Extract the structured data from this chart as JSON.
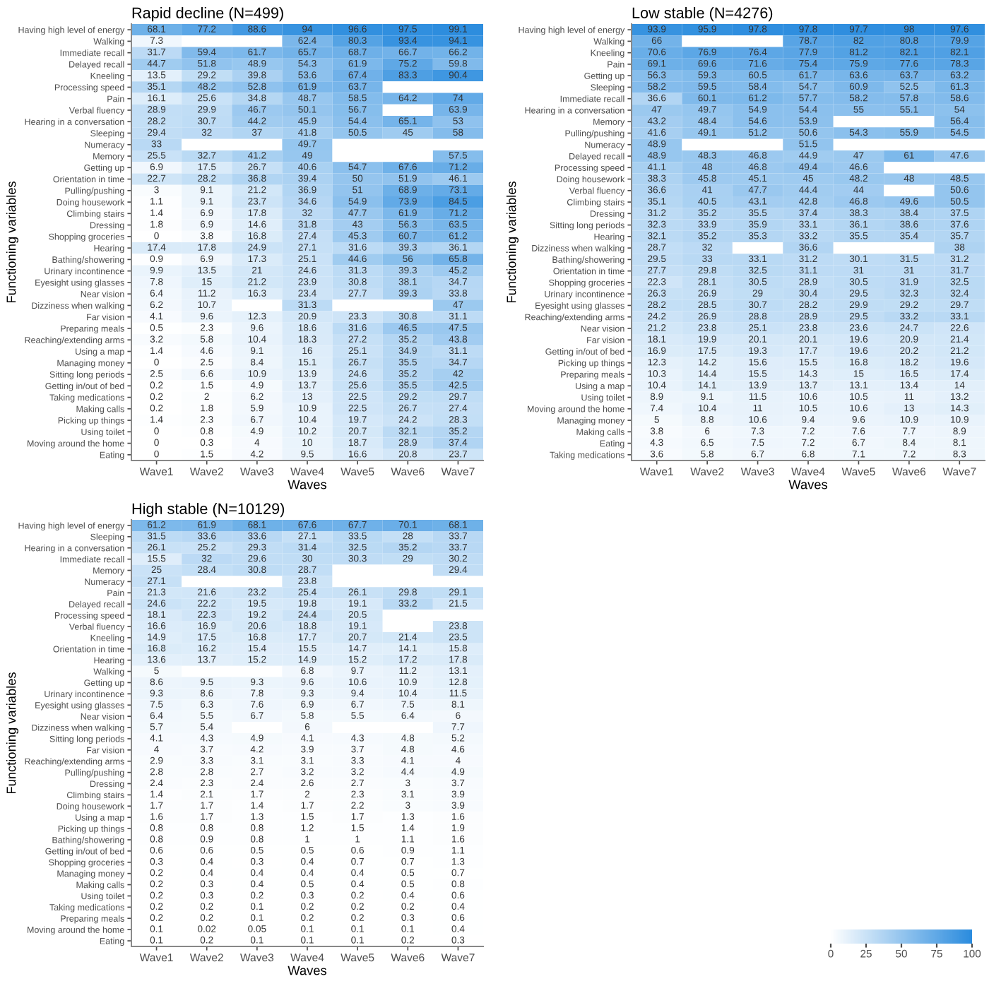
{
  "chart_data": [
    {
      "type": "heatmap",
      "title": "Rapid decline (N=499)",
      "xlabel": "Waves",
      "ylabel": "Functioning variables",
      "data_labels": true,
      "categories": [
        "Wave1",
        "Wave2",
        "Wave3",
        "Wave4",
        "Wave5",
        "Wave6",
        "Wave7"
      ],
      "y_categories": [
        "Having high level of energy",
        "Walking",
        "Immediate recall",
        "Delayed recall",
        "Kneeling",
        "Processing speed",
        "Pain",
        "Verbal fluency",
        "Hearing in a conversation",
        "Sleeping",
        "Numeracy",
        "Memory",
        "Getting up",
        "Orientation in time",
        "Pulling/pushing",
        "Doing housework",
        "Climbing stairs",
        "Dressing",
        "Shopping groceries",
        "Hearing",
        "Bathing/showering",
        "Urinary incontinence",
        "Eyesight using glasses",
        "Near vision",
        "Dizziness when walking",
        "Far vision",
        "Preparing meals",
        "Reaching/extending arms",
        "Using a map",
        "Managing money",
        "Sitting long periods",
        "Getting in/out of bed",
        "Taking medications",
        "Making calls",
        "Picking up things",
        "Using toilet",
        "Moving around the home",
        "Eating"
      ],
      "cells": [
        [
          68.1,
          77.2,
          88.6,
          94,
          96.6,
          97.5,
          99.1
        ],
        [
          7.3,
          null,
          null,
          62.4,
          80.3,
          93.4,
          94.1
        ],
        [
          31.7,
          59.4,
          61.7,
          65.7,
          68.7,
          66.7,
          66.2
        ],
        [
          44.7,
          51.8,
          48.9,
          54.3,
          61.9,
          75.2,
          59.8
        ],
        [
          13.5,
          29.2,
          39.8,
          53.6,
          67.4,
          83.3,
          90.4
        ],
        [
          35.1,
          48.2,
          52.8,
          61.9,
          63.7,
          null,
          null
        ],
        [
          16.1,
          25.6,
          34.8,
          48.7,
          58.5,
          64.2,
          74
        ],
        [
          28.9,
          29.9,
          46.7,
          50.1,
          56.7,
          null,
          63.9
        ],
        [
          28.2,
          30.7,
          44.2,
          45.9,
          54.4,
          65.1,
          53
        ],
        [
          29.4,
          32,
          37,
          41.8,
          50.5,
          45,
          58
        ],
        [
          33,
          null,
          null,
          49.7,
          null,
          null,
          null
        ],
        [
          25.5,
          32.7,
          41.2,
          49,
          null,
          null,
          57.5
        ],
        [
          6.9,
          17.5,
          26.7,
          40.6,
          54.7,
          67.6,
          71.2
        ],
        [
          22.7,
          28.2,
          36.8,
          39.4,
          50,
          51.9,
          46.1
        ],
        [
          3,
          9.1,
          21.2,
          36.9,
          51,
          68.9,
          73.1
        ],
        [
          1.1,
          9.1,
          23.7,
          34.6,
          54.9,
          73.9,
          84.5
        ],
        [
          1.4,
          6.9,
          17.8,
          32,
          47.7,
          61.9,
          71.2
        ],
        [
          1.8,
          6.9,
          14.6,
          31.8,
          43,
          56.3,
          63.5
        ],
        [
          0,
          3.8,
          16.8,
          27.4,
          45.3,
          60.7,
          61.2
        ],
        [
          17.4,
          17.8,
          24.9,
          27.1,
          31.6,
          39.3,
          36.1
        ],
        [
          0.9,
          6.9,
          17.3,
          25.1,
          44.6,
          56,
          65.8
        ],
        [
          9.9,
          13.5,
          21,
          24.6,
          31.3,
          39.3,
          45.2
        ],
        [
          7.8,
          15,
          21.2,
          23.9,
          30.8,
          38.1,
          34.7
        ],
        [
          6.4,
          11.2,
          16.3,
          23.4,
          27.7,
          39.3,
          33.8
        ],
        [
          6.2,
          10.7,
          null,
          31.3,
          null,
          null,
          47
        ],
        [
          4.1,
          9.6,
          12.3,
          20.9,
          23.3,
          30.8,
          31.1
        ],
        [
          0.5,
          2.3,
          9.6,
          18.6,
          31.6,
          46.5,
          47.5
        ],
        [
          3.2,
          5.8,
          10.4,
          18.3,
          27.2,
          35.2,
          43.8
        ],
        [
          1.4,
          4.6,
          9.1,
          16,
          25.1,
          34.9,
          31.1
        ],
        [
          0,
          2.5,
          8.4,
          15.1,
          26.7,
          35.5,
          34.7
        ],
        [
          2.5,
          6.6,
          10.9,
          13.9,
          24.6,
          35.2,
          42
        ],
        [
          0.2,
          1.5,
          4.9,
          13.7,
          25.6,
          35.5,
          42.5
        ],
        [
          0.2,
          2,
          6.2,
          13,
          22.5,
          29.2,
          29.7
        ],
        [
          0.2,
          1.8,
          5.9,
          10.9,
          22.5,
          26.7,
          27.4
        ],
        [
          1.4,
          2.3,
          6.7,
          10.4,
          19.7,
          24.2,
          28.3
        ],
        [
          0,
          0.8,
          4.9,
          10.2,
          20.7,
          32.1,
          35.2
        ],
        [
          0,
          0.3,
          4,
          10,
          18.7,
          28.9,
          37.4
        ],
        [
          0,
          1.5,
          4.2,
          9.5,
          16.6,
          20.8,
          23.7
        ]
      ]
    },
    {
      "type": "heatmap",
      "title": "Low stable (N=4276)",
      "xlabel": "Waves",
      "ylabel": "Functioning variables",
      "data_labels": true,
      "categories": [
        "Wave1",
        "Wave2",
        "Wave3",
        "Wave4",
        "Wave5",
        "Wave6",
        "Wave7"
      ],
      "y_categories": [
        "Having high level of energy",
        "Walking",
        "Kneeling",
        "Pain",
        "Getting up",
        "Sleeping",
        "Immediate recall",
        "Hearing in a conversation",
        "Memory",
        "Pulling/pushing",
        "Numeracy",
        "Delayed recall",
        "Processing speed",
        "Doing housework",
        "Verbal fluency",
        "Climbing stairs",
        "Dressing",
        "Sitting long periods",
        "Hearing",
        "Dizziness when walking",
        "Bathing/showering",
        "Orientation in time",
        "Shopping groceries",
        "Urinary incontinence",
        "Eyesight using glasses",
        "Reaching/extending arms",
        "Near vision",
        "Far vision",
        "Getting in/out of bed",
        "Picking up things",
        "Preparing meals",
        "Using a map",
        "Using toilet",
        "Moving around the home",
        "Managing money",
        "Making calls",
        "Eating",
        "Taking medications"
      ],
      "cells": [
        [
          93.9,
          95.9,
          97.8,
          97.8,
          97.7,
          98,
          97.6
        ],
        [
          66,
          null,
          null,
          78.7,
          82,
          80.8,
          79.9
        ],
        [
          70.6,
          76.9,
          76.4,
          77.9,
          81.2,
          82.1,
          82.1
        ],
        [
          69.1,
          69.6,
          71.6,
          75.4,
          75.9,
          77.6,
          78.3
        ],
        [
          56.3,
          59.3,
          60.5,
          61.7,
          63.6,
          63.7,
          63.2
        ],
        [
          58.2,
          59.5,
          58.4,
          54.7,
          60.9,
          52.5,
          61.3
        ],
        [
          36.6,
          60.1,
          61.2,
          57.7,
          58.2,
          57.8,
          58.6
        ],
        [
          47,
          49.7,
          54.9,
          54.4,
          55,
          55.1,
          54
        ],
        [
          43.2,
          48.4,
          54.6,
          53.9,
          null,
          null,
          56.4
        ],
        [
          41.6,
          49.1,
          51.2,
          50.6,
          54.3,
          55.9,
          54.5
        ],
        [
          48.9,
          null,
          null,
          51.5,
          null,
          null,
          null
        ],
        [
          48.9,
          48.3,
          46.8,
          44.9,
          47,
          61,
          47.6
        ],
        [
          41.1,
          48,
          46.8,
          49.4,
          46.6,
          null,
          null
        ],
        [
          38.3,
          45.8,
          45.1,
          45,
          48.2,
          48,
          48.5
        ],
        [
          36.6,
          41,
          47.7,
          44.4,
          44,
          null,
          50.6
        ],
        [
          35.1,
          40.5,
          43.1,
          42.8,
          46.8,
          49.6,
          50.5
        ],
        [
          31.2,
          35.2,
          35.5,
          37.4,
          38.3,
          38.4,
          37.5
        ],
        [
          32.3,
          33.9,
          35.9,
          33.1,
          36.1,
          38.6,
          37.6
        ],
        [
          32.1,
          35.2,
          35.3,
          33.2,
          35.5,
          35.4,
          35.7
        ],
        [
          28.7,
          32,
          null,
          36.6,
          null,
          null,
          38
        ],
        [
          29.5,
          33,
          33.1,
          31.2,
          30.1,
          31.5,
          31.2
        ],
        [
          27.7,
          29.8,
          32.5,
          31.1,
          31,
          31,
          31.7
        ],
        [
          22.3,
          28.1,
          30.5,
          28.9,
          30.5,
          31.9,
          32.5
        ],
        [
          26.3,
          26.9,
          29,
          30.4,
          29.5,
          32.3,
          32.4
        ],
        [
          28.2,
          28.5,
          30.7,
          28.2,
          29.9,
          29.2,
          29.7
        ],
        [
          24.2,
          26.9,
          28.8,
          28.9,
          29.5,
          33.2,
          33.1
        ],
        [
          21.2,
          23.8,
          25.1,
          23.8,
          23.6,
          24.7,
          22.6
        ],
        [
          18.1,
          19.9,
          20.1,
          20.1,
          19.6,
          20.9,
          21.4
        ],
        [
          16.9,
          17.5,
          19.3,
          17.7,
          19.6,
          20.2,
          21.2
        ],
        [
          12.3,
          14.2,
          15.6,
          15.5,
          16.8,
          18.2,
          19.6
        ],
        [
          10.3,
          14.4,
          15.5,
          14.3,
          15,
          16.5,
          17.4
        ],
        [
          10.4,
          14.1,
          13.9,
          13.7,
          13.1,
          13.4,
          14
        ],
        [
          8.9,
          9.1,
          11.5,
          10.6,
          10.5,
          11,
          13.2
        ],
        [
          7.4,
          10.4,
          11,
          10.5,
          10.6,
          13,
          14.3
        ],
        [
          5,
          8.8,
          10.6,
          9.4,
          9.6,
          10.9,
          10.9
        ],
        [
          3.8,
          6,
          7.3,
          7.2,
          7.6,
          7.7,
          8.9
        ],
        [
          4.3,
          6.5,
          7.5,
          7.2,
          6.7,
          8.4,
          8.1
        ],
        [
          3.6,
          5.8,
          6.7,
          6.8,
          7.1,
          7.2,
          8.3
        ]
      ]
    },
    {
      "type": "heatmap",
      "title": "High stable (N=10129)",
      "xlabel": "Waves",
      "ylabel": "Functioning variables",
      "data_labels": true,
      "clim": [
        0,
        100
      ],
      "cticks": [
        0,
        25,
        50,
        75,
        100
      ],
      "categories": [
        "Wave1",
        "Wave2",
        "Wave3",
        "Wave4",
        "Wave5",
        "Wave6",
        "Wave7"
      ],
      "y_categories": [
        "Having high level of energy",
        "Sleeping",
        "Hearing in a conversation",
        "Immediate recall",
        "Memory",
        "Numeracy",
        "Pain",
        "Delayed recall",
        "Processing speed",
        "Verbal fluency",
        "Kneeling",
        "Orientation in time",
        "Hearing",
        "Walking",
        "Getting up",
        "Urinary incontinence",
        "Eyesight using glasses",
        "Near vision",
        "Dizziness when walking",
        "Sitting long periods",
        "Far vision",
        "Reaching/extending arms",
        "Pulling/pushing",
        "Dressing",
        "Climbing stairs",
        "Doing housework",
        "Using a map",
        "Picking up things",
        "Bathing/showering",
        "Getting in/out of bed",
        "Shopping groceries",
        "Managing money",
        "Making calls",
        "Using toilet",
        "Taking medications",
        "Preparing meals",
        "Moving around the home",
        "Eating"
      ],
      "cells": [
        [
          61.2,
          61.9,
          68.1,
          67.6,
          67.7,
          70.1,
          68.1
        ],
        [
          31.5,
          33.6,
          33.6,
          27.1,
          33.5,
          28,
          33.7
        ],
        [
          26.1,
          25.2,
          29.3,
          31.4,
          32.5,
          35.2,
          33.7
        ],
        [
          15.5,
          32,
          29.6,
          30,
          30.3,
          29,
          30.2
        ],
        [
          25,
          28.4,
          30.8,
          28.7,
          null,
          null,
          29.4
        ],
        [
          27.1,
          null,
          null,
          23.8,
          null,
          null,
          null
        ],
        [
          21.3,
          21.6,
          23.2,
          25.4,
          26.1,
          29.8,
          29.1
        ],
        [
          24.6,
          22.2,
          19.5,
          19.8,
          19.1,
          33.2,
          21.5
        ],
        [
          18.1,
          22.3,
          19.2,
          24.4,
          20.5,
          null,
          null
        ],
        [
          16.6,
          16.9,
          20.6,
          18.8,
          19.1,
          null,
          23.8
        ],
        [
          14.9,
          17.5,
          16.8,
          17.7,
          20.7,
          21.4,
          23.5
        ],
        [
          16.8,
          16.2,
          15.4,
          15.5,
          14.7,
          14.1,
          15.8
        ],
        [
          13.6,
          13.7,
          15.2,
          14.9,
          15.2,
          17.2,
          17.8
        ],
        [
          5,
          null,
          null,
          6.8,
          9.7,
          11.2,
          13.1
        ],
        [
          8.6,
          9.5,
          9.3,
          9.6,
          10.6,
          10.9,
          12.8
        ],
        [
          9.3,
          8.6,
          7.8,
          9.3,
          9.4,
          10.4,
          11.5
        ],
        [
          7.5,
          6.3,
          7.6,
          6.9,
          6.7,
          7.5,
          8.1
        ],
        [
          6.4,
          5.5,
          6.7,
          5.8,
          5.5,
          6.4,
          6
        ],
        [
          5.7,
          5.4,
          null,
          6,
          null,
          null,
          7.7
        ],
        [
          4.1,
          4.3,
          4.9,
          4.1,
          4.3,
          4.8,
          5.2
        ],
        [
          4,
          3.7,
          4.2,
          3.9,
          3.7,
          4.8,
          4.6
        ],
        [
          2.9,
          3.3,
          3.1,
          3.1,
          3.3,
          4.1,
          4
        ],
        [
          2.8,
          2.8,
          2.7,
          3.2,
          3.2,
          4.4,
          4.9
        ],
        [
          2.4,
          2.3,
          2.4,
          2.6,
          2.7,
          3,
          3.7
        ],
        [
          1.4,
          2.1,
          1.7,
          2,
          2.3,
          3.1,
          3.9
        ],
        [
          1.7,
          1.7,
          1.4,
          1.7,
          2.2,
          3,
          3.9
        ],
        [
          1.6,
          1.7,
          1.3,
          1.5,
          1.7,
          1.3,
          1.6
        ],
        [
          0.8,
          0.8,
          0.8,
          1.2,
          1.5,
          1.4,
          1.9
        ],
        [
          0.8,
          0.9,
          0.8,
          1,
          1,
          1.1,
          1.6
        ],
        [
          0.6,
          0.6,
          0.5,
          0.5,
          0.6,
          0.9,
          1.1
        ],
        [
          0.3,
          0.4,
          0.3,
          0.4,
          0.7,
          0.7,
          1.3
        ],
        [
          0.2,
          0.4,
          0.4,
          0.4,
          0.4,
          0.5,
          0.7
        ],
        [
          0.2,
          0.3,
          0.4,
          0.5,
          0.4,
          0.5,
          0.8
        ],
        [
          0.2,
          0.3,
          0.2,
          0.3,
          0.2,
          0.4,
          0.6
        ],
        [
          0.2,
          0.2,
          0.1,
          0.2,
          0.2,
          0.2,
          0.4
        ],
        [
          0.2,
          0.2,
          0.1,
          0.2,
          0.2,
          0.3,
          0.6
        ],
        [
          0.1,
          0.02,
          0.05,
          0.1,
          0.1,
          0.1,
          0.4
        ],
        [
          0.1,
          0.2,
          0.1,
          0.1,
          0.1,
          0.2,
          0.3
        ]
      ]
    }
  ]
}
